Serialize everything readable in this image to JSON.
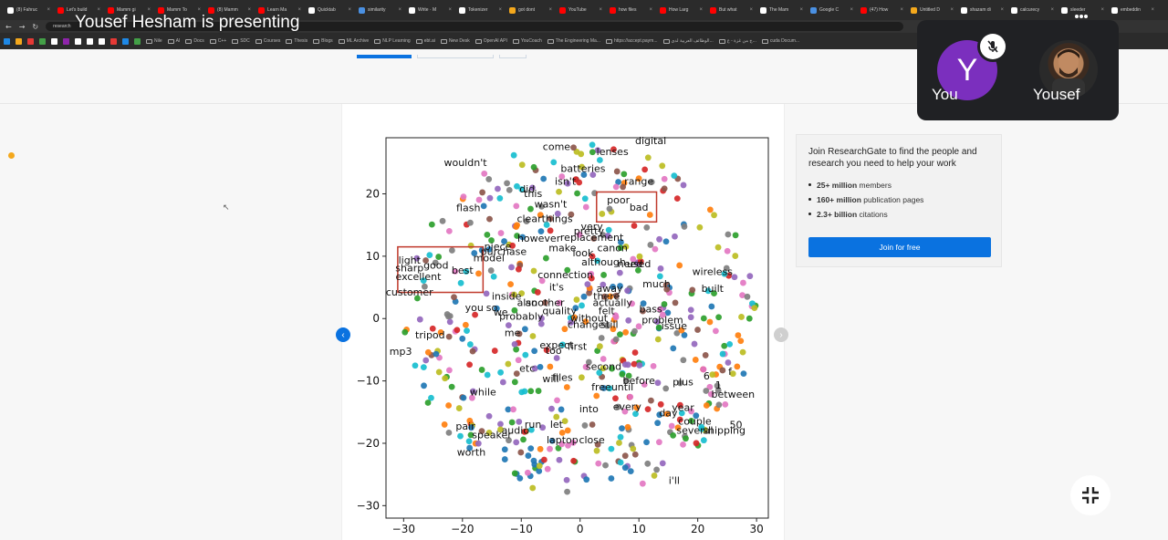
{
  "presenter_banner": "Yousef Hesham is presenting",
  "browser": {
    "tabs": [
      {
        "label": "(8) Fahruc",
        "color": "#ffffff"
      },
      {
        "label": "Let's build",
        "color": "#ff0000"
      },
      {
        "label": "Mamm gi",
        "color": "#ff0000"
      },
      {
        "label": "Mamm To",
        "color": "#ff0000"
      },
      {
        "label": "(8) Mamm",
        "color": "#ff0000"
      },
      {
        "label": "Learn Ma",
        "color": "#ff0000"
      },
      {
        "label": "Quicktab",
        "color": "#ffffff"
      },
      {
        "label": "similarity",
        "color": "#4a90e2"
      },
      {
        "label": "Write · M",
        "color": "#ffffff"
      },
      {
        "label": "Tokenizer",
        "color": "#ffffff"
      },
      {
        "label": "got dont",
        "color": "#f4a81c"
      },
      {
        "label": "YouTube",
        "color": "#ff0000"
      },
      {
        "label": "how files",
        "color": "#ff0000"
      },
      {
        "label": "How Larg",
        "color": "#ff0000"
      },
      {
        "label": "But what",
        "color": "#ff0000"
      },
      {
        "label": "The Mam",
        "color": "#ffffff"
      },
      {
        "label": "Google C",
        "color": "#4a90e2"
      },
      {
        "label": "(47) How",
        "color": "#ff0000"
      },
      {
        "label": "Untitled D",
        "color": "#f4a81c"
      },
      {
        "label": "shazam di",
        "color": "#ffffff"
      },
      {
        "label": "calcurecy",
        "color": "#ffffff"
      },
      {
        "label": "sleeder",
        "color": "#ffffff"
      },
      {
        "label": "embeddin",
        "color": "#ffffff"
      }
    ],
    "url": "research",
    "bookmarks": [
      "Nile",
      "AI",
      "Docs",
      "C++",
      "SDC",
      "Courses",
      "Thesis",
      "Blogs",
      "ML Archive",
      "NLP Learning",
      "ebt.ai",
      "New Desk",
      "OpenAI API",
      "YouCoach",
      "The Engineering Ma...",
      "https://accept.paym...",
      "الوظائف العربية لدى...",
      "ج من غزة - ع...",
      "cuda Docum..."
    ]
  },
  "chart_data": {
    "type": "scatter",
    "title": "",
    "xlabel": "",
    "ylabel": "",
    "xlim": [
      -33,
      32
    ],
    "ylim": [
      -32,
      29
    ],
    "xticks": [
      -30,
      -20,
      -10,
      0,
      10,
      20,
      30
    ],
    "yticks": [
      -30,
      -20,
      -10,
      0,
      10,
      20
    ],
    "xtick_labels": [
      "−30",
      "−20",
      "−10",
      "0",
      "10",
      "20",
      "30"
    ],
    "ytick_labels": [
      "−30",
      "−20",
      "−10",
      "0",
      "10",
      "20"
    ],
    "highlight_boxes": [
      {
        "label": "positive-cluster",
        "x0": -31,
        "x1": -16.5,
        "y0": 4.2,
        "y1": 11.5
      },
      {
        "label": "negative-cluster",
        "x0": 2.8,
        "x1": 13,
        "y0": 15.5,
        "y1": 20.3
      }
    ],
    "word_labels": [
      {
        "text": "come",
        "x": -4,
        "y": 27
      },
      {
        "text": "digital",
        "x": 12,
        "y": 28
      },
      {
        "text": "lenses",
        "x": 5.5,
        "y": 26.2
      },
      {
        "text": "wouldn't",
        "x": -19.5,
        "y": 24.5
      },
      {
        "text": "batteries",
        "x": 0.5,
        "y": 23.5
      },
      {
        "text": "range",
        "x": 10,
        "y": 21.5
      },
      {
        "text": "isn't",
        "x": -2.5,
        "y": 21.5
      },
      {
        "text": "did",
        "x": -9,
        "y": 20.2
      },
      {
        "text": "this",
        "x": -8,
        "y": 19.5
      },
      {
        "text": "wasn't",
        "x": -5,
        "y": 17.8
      },
      {
        "text": "poor",
        "x": 6.5,
        "y": 18.5
      },
      {
        "text": "bad",
        "x": 10,
        "y": 17.3
      },
      {
        "text": "flash",
        "x": -19,
        "y": 17.2
      },
      {
        "text": "clearthings",
        "x": -6,
        "y": 15.5
      },
      {
        "text": "pretty",
        "x": 1.5,
        "y": 13.5
      },
      {
        "text": "very",
        "x": 2,
        "y": 14.2
      },
      {
        "text": "however",
        "x": -7,
        "y": 12.3
      },
      {
        "text": "replacement",
        "x": 2,
        "y": 12.5
      },
      {
        "text": "piece",
        "x": -14,
        "y": 11
      },
      {
        "text": "make",
        "x": -3,
        "y": 10.8
      },
      {
        "text": "canon",
        "x": 5.5,
        "y": 10.8
      },
      {
        "text": "purchase",
        "x": -13,
        "y": 10.2
      },
      {
        "text": "look",
        "x": 0.5,
        "y": 10
      },
      {
        "text": "model",
        "x": -15.5,
        "y": 9.2
      },
      {
        "text": "although",
        "x": 4,
        "y": 8.5
      },
      {
        "text": "need",
        "x": 8.5,
        "y": 8.2
      },
      {
        "text": "used",
        "x": 10,
        "y": 8.2
      },
      {
        "text": "wireless",
        "x": 22.5,
        "y": 7
      },
      {
        "text": "light",
        "x": -29,
        "y": 8.8
      },
      {
        "text": "good",
        "x": -24.5,
        "y": 8
      },
      {
        "text": "sharp",
        "x": -29,
        "y": 7.6
      },
      {
        "text": "best",
        "x": -20,
        "y": 7.2
      },
      {
        "text": "excellent",
        "x": -27.5,
        "y": 6.2
      },
      {
        "text": "connection",
        "x": -2.5,
        "y": 6.5
      },
      {
        "text": "much",
        "x": 13,
        "y": 5
      },
      {
        "text": "built",
        "x": 22.5,
        "y": 4.3
      },
      {
        "text": "it's",
        "x": -4,
        "y": 4.5
      },
      {
        "text": "away",
        "x": 5,
        "y": 4.3
      },
      {
        "text": "customer",
        "x": -29,
        "y": 3.7
      },
      {
        "text": "inside",
        "x": -12.5,
        "y": 3
      },
      {
        "text": "there",
        "x": 4.5,
        "y": 3
      },
      {
        "text": "another",
        "x": -6,
        "y": 2
      },
      {
        "text": "also",
        "x": -9,
        "y": 2
      },
      {
        "text": "actually",
        "x": 5.5,
        "y": 2
      },
      {
        "text": "you",
        "x": -18,
        "y": 1.2
      },
      {
        "text": "so",
        "x": -15,
        "y": 1.2
      },
      {
        "text": "we",
        "x": -13.5,
        "y": 0.5
      },
      {
        "text": "bass",
        "x": 12,
        "y": 1
      },
      {
        "text": "felt",
        "x": 4.5,
        "y": 0.7
      },
      {
        "text": "quality",
        "x": -3.5,
        "y": 0.7
      },
      {
        "text": "probably",
        "x": -10,
        "y": -0.2
      },
      {
        "text": "without",
        "x": 1.5,
        "y": -0.5
      },
      {
        "text": "problem",
        "x": 14,
        "y": -0.8
      },
      {
        "text": "change",
        "x": 1,
        "y": -1.5
      },
      {
        "text": "still",
        "x": 5,
        "y": -1.5
      },
      {
        "text": "issue",
        "x": 16,
        "y": -1.7
      },
      {
        "text": "me",
        "x": -11.5,
        "y": -2.8
      },
      {
        "text": "tripod",
        "x": -25.5,
        "y": -3.2
      },
      {
        "text": "expect",
        "x": -4,
        "y": -4.8
      },
      {
        "text": "first",
        "x": -0.5,
        "y": -5
      },
      {
        "text": "mp3",
        "x": -30.5,
        "y": -5.8
      },
      {
        "text": "too",
        "x": -4.5,
        "y": -5.7
      },
      {
        "text": "second",
        "x": 4,
        "y": -8.2
      },
      {
        "text": "etc",
        "x": -9,
        "y": -8.5
      },
      {
        "text": "f",
        "x": 25.5,
        "y": -9
      },
      {
        "text": "6",
        "x": 21.5,
        "y": -9.8
      },
      {
        "text": "will",
        "x": -5,
        "y": -10.2
      },
      {
        "text": "files",
        "x": -3,
        "y": -10
      },
      {
        "text": "before",
        "x": 10,
        "y": -10.5
      },
      {
        "text": "plus",
        "x": 17.5,
        "y": -10.7
      },
      {
        "text": "1",
        "x": 23.5,
        "y": -11.2
      },
      {
        "text": "freeuntil",
        "x": 5.5,
        "y": -11.5
      },
      {
        "text": "while",
        "x": -16.5,
        "y": -12.3
      },
      {
        "text": "between",
        "x": 26,
        "y": -12.7
      },
      {
        "text": "into",
        "x": 1.5,
        "y": -15
      },
      {
        "text": "every",
        "x": 8,
        "y": -14.7
      },
      {
        "text": "year",
        "x": 17.5,
        "y": -14.8
      },
      {
        "text": "day",
        "x": 15,
        "y": -15.7
      },
      {
        "text": "couple",
        "x": 19.5,
        "y": -17
      },
      {
        "text": "50",
        "x": 26.5,
        "y": -17.6
      },
      {
        "text": "several",
        "x": 19.5,
        "y": -18.5
      },
      {
        "text": "shipping",
        "x": 24.5,
        "y": -18.5
      },
      {
        "text": "pair",
        "x": -19.5,
        "y": -17.8
      },
      {
        "text": "run",
        "x": -8,
        "y": -17.5
      },
      {
        "text": "let",
        "x": -4,
        "y": -17.5
      },
      {
        "text": "audio",
        "x": -11,
        "y": -18.5
      },
      {
        "text": "speaker",
        "x": -15,
        "y": -19.2
      },
      {
        "text": "laptop",
        "x": -3,
        "y": -20
      },
      {
        "text": "close",
        "x": 2,
        "y": -20
      },
      {
        "text": "worth",
        "x": -18.5,
        "y": -22
      },
      {
        "text": "i'll",
        "x": 16,
        "y": -26.5
      }
    ],
    "colors": [
      "#1f77b4",
      "#ff7f0e",
      "#2ca02c",
      "#d62728",
      "#9467bd",
      "#8c564b",
      "#e377c2",
      "#7f7f7f",
      "#bcbd22",
      "#17becf"
    ]
  },
  "sidebar_card": {
    "title": "Join ResearchGate to find the people and research you need to help your work",
    "stats": [
      {
        "value": "25+ million",
        "text": " members"
      },
      {
        "value": "160+ million",
        "text": " publication pages"
      },
      {
        "value": "2.3+ billion",
        "text": " citations"
      }
    ],
    "join_label": "Join for free"
  },
  "meet": {
    "self_initial": "Y",
    "self_name": "You",
    "other_name": "Yousef",
    "accent": "#7b2fbe"
  }
}
